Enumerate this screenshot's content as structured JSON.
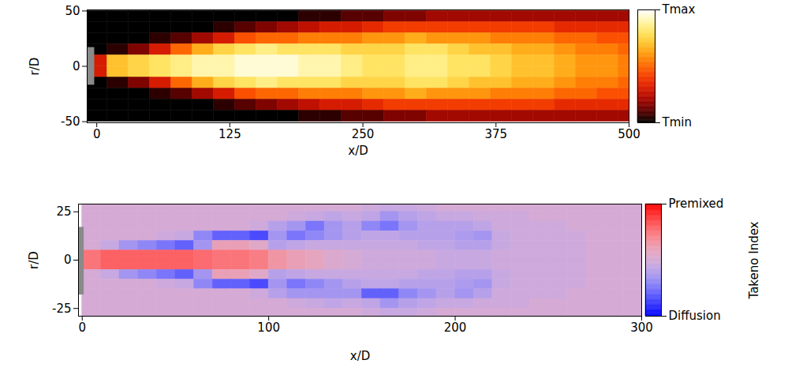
{
  "chart_data": [
    {
      "type": "heatmap",
      "xlabel": "x/D",
      "ylabel": "r/D",
      "xlim": [
        -9,
        500
      ],
      "ylim": [
        -51,
        51
      ],
      "xticks": [
        0,
        125,
        250,
        375,
        500
      ],
      "yticks": [
        -50,
        0,
        50
      ],
      "colors": [
        "#000000",
        "#b30000",
        "#ff3300",
        "#ff9900",
        "#ffee55",
        "#ffffff"
      ],
      "x_edges": [
        -10,
        10,
        30,
        50,
        70,
        90,
        110,
        130,
        150,
        170,
        190,
        210,
        230,
        250,
        270,
        290,
        310,
        330,
        350,
        370,
        390,
        410,
        430,
        450,
        470,
        490,
        510
      ],
      "y_edges": [
        50,
        40,
        30,
        20,
        10,
        0,
        -10,
        -20,
        -30,
        -40,
        -50
      ],
      "cells": [
        [
          0,
          0,
          0,
          0,
          0,
          0,
          0,
          0,
          0,
          0,
          0.05,
          0.05,
          0.1,
          0.1,
          0.15,
          0.15,
          0.2,
          0.2,
          0.2,
          0.2,
          0.2,
          0.2,
          0.2,
          0.2,
          0.2,
          0.2
        ],
        [
          0,
          0,
          0,
          0,
          0,
          0,
          0.05,
          0.1,
          0.15,
          0.2,
          0.25,
          0.3,
          0.3,
          0.35,
          0.4,
          0.4,
          0.4,
          0.4,
          0.4,
          0.4,
          0.4,
          0.4,
          0.35,
          0.35,
          0.35,
          0.35
        ],
        [
          0,
          0,
          0,
          0.05,
          0.1,
          0.2,
          0.3,
          0.45,
          0.5,
          0.5,
          0.55,
          0.55,
          0.55,
          0.6,
          0.6,
          0.65,
          0.6,
          0.6,
          0.6,
          0.55,
          0.55,
          0.55,
          0.5,
          0.5,
          0.45,
          0.45
        ],
        [
          0,
          0.05,
          0.15,
          0.3,
          0.5,
          0.65,
          0.75,
          0.8,
          0.85,
          0.8,
          0.8,
          0.8,
          0.75,
          0.75,
          0.75,
          0.8,
          0.8,
          0.75,
          0.7,
          0.7,
          0.65,
          0.65,
          0.6,
          0.55,
          0.55,
          0.5
        ],
        [
          0.3,
          0.7,
          0.75,
          0.8,
          0.85,
          0.9,
          0.9,
          0.95,
          0.95,
          0.95,
          0.9,
          0.9,
          0.85,
          0.8,
          0.8,
          0.85,
          0.85,
          0.8,
          0.8,
          0.75,
          0.7,
          0.7,
          0.65,
          0.6,
          0.6,
          0.55
        ],
        [
          0.3,
          0.7,
          0.75,
          0.8,
          0.85,
          0.9,
          0.9,
          0.95,
          0.95,
          0.95,
          0.9,
          0.9,
          0.85,
          0.8,
          0.8,
          0.85,
          0.85,
          0.8,
          0.8,
          0.75,
          0.7,
          0.7,
          0.65,
          0.6,
          0.6,
          0.55
        ],
        [
          0,
          0.05,
          0.15,
          0.3,
          0.5,
          0.65,
          0.75,
          0.8,
          0.85,
          0.8,
          0.8,
          0.8,
          0.75,
          0.75,
          0.75,
          0.8,
          0.8,
          0.75,
          0.7,
          0.7,
          0.65,
          0.65,
          0.6,
          0.55,
          0.55,
          0.5
        ],
        [
          0,
          0,
          0,
          0.05,
          0.1,
          0.2,
          0.3,
          0.45,
          0.5,
          0.5,
          0.55,
          0.55,
          0.55,
          0.6,
          0.6,
          0.65,
          0.6,
          0.6,
          0.6,
          0.55,
          0.55,
          0.55,
          0.5,
          0.5,
          0.45,
          0.45
        ],
        [
          0,
          0,
          0,
          0,
          0,
          0,
          0.05,
          0.1,
          0.15,
          0.2,
          0.25,
          0.3,
          0.3,
          0.35,
          0.4,
          0.4,
          0.4,
          0.4,
          0.4,
          0.4,
          0.4,
          0.4,
          0.35,
          0.35,
          0.35,
          0.35
        ],
        [
          0,
          0,
          0,
          0,
          0,
          0,
          0,
          0,
          0,
          0,
          0.05,
          0.05,
          0.1,
          0.1,
          0.15,
          0.15,
          0.2,
          0.2,
          0.2,
          0.2,
          0.2,
          0.2,
          0.2,
          0.2,
          0.2,
          0.2
        ]
      ],
      "injector": {
        "x": [
          -9,
          -2
        ],
        "y": [
          -17,
          17
        ]
      },
      "colorbar": {
        "clim": [
          0,
          1
        ],
        "ticks": [
          {
            "value": 0,
            "label": "Tmin"
          },
          {
            "value": 1,
            "label": "Tmax"
          }
        ]
      }
    },
    {
      "type": "heatmap",
      "xlabel": "x/D",
      "ylabel": "r/D",
      "xlim": [
        -2,
        300
      ],
      "ylim": [
        -29,
        29
      ],
      "xticks": [
        0,
        100,
        200,
        300
      ],
      "yticks": [
        -25,
        0,
        25
      ],
      "colors": [
        "#0000ff",
        "#ffffff",
        "#ff0000"
      ],
      "x_edges": [
        0,
        10,
        20,
        30,
        40,
        50,
        60,
        70,
        80,
        90,
        100,
        110,
        120,
        130,
        140,
        150,
        160,
        170,
        180,
        190,
        200,
        210,
        220,
        230,
        240,
        250,
        260,
        270,
        280,
        290,
        300
      ],
      "y_edges": [
        30,
        25,
        20,
        15,
        10,
        5,
        0,
        -5,
        -10,
        -15,
        -20,
        -25,
        -30
      ],
      "cells": [
        [
          0,
          0,
          0,
          0,
          0,
          0,
          0,
          0,
          0,
          0,
          0,
          0,
          0,
          0,
          0,
          -0.05,
          -0.1,
          -0.1,
          -0.05,
          0,
          0,
          0,
          0,
          0,
          0,
          0,
          0,
          0,
          0,
          0
        ],
        [
          0,
          0,
          0,
          0,
          0,
          0,
          0,
          0,
          0,
          0,
          0,
          -0.05,
          -0.1,
          -0.15,
          -0.1,
          -0.15,
          -0.3,
          -0.2,
          -0.15,
          -0.1,
          -0.1,
          -0.05,
          -0.05,
          -0.05,
          0,
          0,
          0,
          0,
          0,
          0
        ],
        [
          0,
          0,
          0,
          0,
          0,
          0,
          0,
          0,
          0,
          -0.05,
          -0.2,
          -0.3,
          -0.5,
          -0.3,
          -0.2,
          -0.4,
          -0.5,
          -0.3,
          -0.2,
          -0.2,
          -0.2,
          -0.15,
          -0.05,
          -0.05,
          -0.05,
          -0.05,
          0,
          0,
          0,
          0
        ],
        [
          0,
          0,
          0,
          0,
          -0.05,
          -0.1,
          -0.4,
          -0.6,
          -0.6,
          -0.7,
          -0.3,
          -0.5,
          -0.4,
          -0.3,
          -0.2,
          -0.15,
          -0.15,
          -0.2,
          -0.2,
          -0.2,
          -0.25,
          -0.3,
          -0.1,
          -0.05,
          -0.05,
          -0.05,
          -0.05,
          0,
          0,
          0
        ],
        [
          0,
          -0.1,
          -0.3,
          -0.4,
          -0.5,
          -0.6,
          -0.3,
          0.2,
          0.2,
          0.1,
          -0.2,
          -0.15,
          -0.1,
          -0.1,
          -0.1,
          -0.1,
          -0.1,
          -0.1,
          -0.15,
          -0.15,
          -0.2,
          -0.2,
          -0.1,
          -0.05,
          -0.05,
          -0.05,
          -0.05,
          0,
          0,
          0
        ],
        [
          0.5,
          0.6,
          0.6,
          0.6,
          0.6,
          0.6,
          0.55,
          0.5,
          0.5,
          0.45,
          0.3,
          0.2,
          0.15,
          0.05,
          0,
          -0.05,
          -0.05,
          -0.05,
          -0.05,
          -0.1,
          -0.1,
          -0.1,
          -0.05,
          -0.05,
          -0.05,
          -0.05,
          -0.05,
          0,
          0,
          0
        ],
        [
          0.5,
          0.6,
          0.6,
          0.6,
          0.6,
          0.6,
          0.55,
          0.5,
          0.5,
          0.45,
          0.3,
          0.2,
          0.15,
          0.05,
          0,
          -0.05,
          -0.05,
          -0.05,
          -0.05,
          -0.1,
          -0.1,
          -0.1,
          -0.05,
          -0.05,
          -0.05,
          -0.05,
          -0.05,
          0,
          0,
          0
        ],
        [
          0,
          -0.1,
          -0.3,
          -0.4,
          -0.5,
          -0.6,
          -0.3,
          0.2,
          0.2,
          0.1,
          -0.2,
          -0.15,
          -0.1,
          -0.1,
          -0.1,
          -0.1,
          -0.1,
          -0.1,
          -0.15,
          -0.15,
          -0.2,
          -0.2,
          -0.1,
          -0.05,
          -0.05,
          -0.05,
          -0.05,
          0,
          0,
          0
        ],
        [
          0,
          0,
          0,
          0,
          -0.05,
          -0.1,
          -0.4,
          -0.6,
          -0.6,
          -0.7,
          -0.3,
          -0.5,
          -0.4,
          -0.3,
          -0.2,
          -0.15,
          -0.15,
          -0.2,
          -0.2,
          -0.2,
          -0.25,
          -0.3,
          -0.1,
          -0.05,
          -0.05,
          -0.05,
          -0.05,
          0,
          0,
          0
        ],
        [
          0,
          0,
          0,
          0,
          0,
          0,
          0,
          0,
          0,
          -0.05,
          -0.2,
          -0.3,
          -0.3,
          -0.3,
          -0.3,
          -0.6,
          -0.6,
          -0.4,
          -0.3,
          -0.2,
          -0.3,
          -0.2,
          -0.05,
          -0.05,
          -0.05,
          -0.05,
          0,
          0,
          0,
          0
        ],
        [
          0,
          0,
          0,
          0,
          0,
          0,
          0,
          0,
          0,
          0,
          0,
          -0.05,
          -0.1,
          -0.15,
          -0.1,
          -0.15,
          -0.3,
          -0.2,
          -0.15,
          -0.1,
          -0.1,
          -0.05,
          -0.05,
          -0.05,
          0,
          0,
          0,
          0,
          0,
          0
        ],
        [
          0,
          0,
          0,
          0,
          0,
          0,
          0,
          0,
          0,
          0,
          0,
          0,
          0,
          0,
          0,
          -0.05,
          -0.1,
          -0.1,
          -0.05,
          0,
          0,
          0,
          0,
          0,
          0,
          0,
          0,
          0,
          0,
          0
        ]
      ],
      "injector": {
        "x": [
          -2,
          1
        ],
        "y": [
          -18,
          17
        ]
      },
      "colorbar": {
        "label": "Takeno Index",
        "clim": [
          -1,
          1
        ],
        "ticks": [
          {
            "value": -1,
            "label": "Diffusion"
          },
          {
            "value": 1,
            "label": "Premixed"
          }
        ]
      }
    }
  ]
}
